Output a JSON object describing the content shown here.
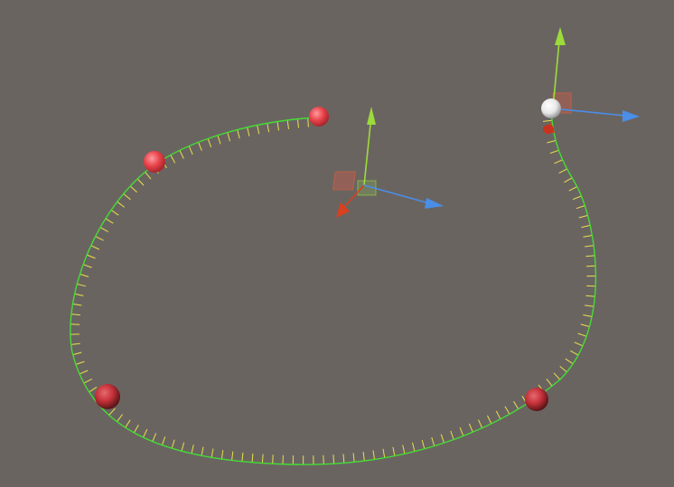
{
  "scene_view": {
    "background": "#6a6461",
    "spline": {
      "curve_color": "#44dd33",
      "tick_color": "#e8e04a",
      "tick_count": 120
    },
    "control_point_color": "#e8424a",
    "selected_point_color": "#ffffff",
    "gizmo_colors": {
      "x": "#4a8ee8",
      "y": "#9cdc3a",
      "z": "#d8401e"
    },
    "icons": [
      "control-point-icon",
      "transform-gizmo-icon",
      "axis-arrow-icon"
    ]
  }
}
